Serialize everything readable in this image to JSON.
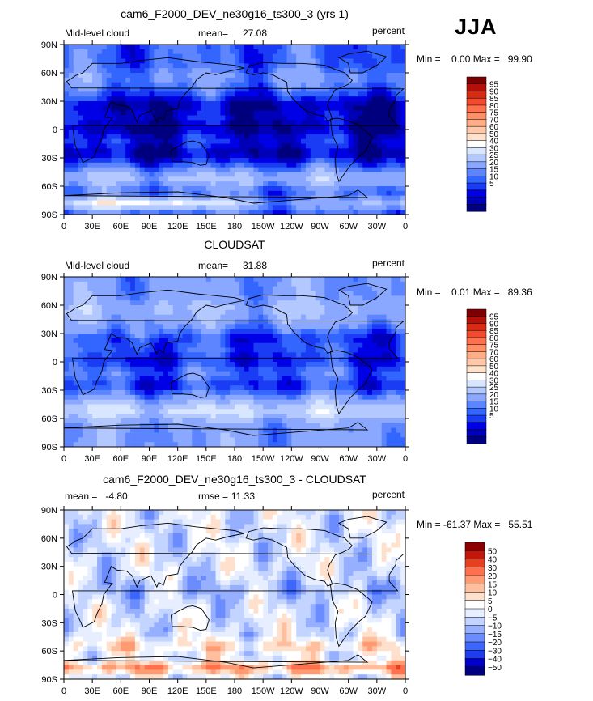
{
  "season": "JJA",
  "colors": {
    "cloud_scale": [
      "#00007f",
      "#0000b8",
      "#0000e6",
      "#1a3cf5",
      "#3366ff",
      "#5c85ff",
      "#8aa8ff",
      "#b3c8ff",
      "#d9e6ff",
      "#ffffff",
      "#ffe2cc",
      "#ffc8a8",
      "#ffad85",
      "#ff8f66",
      "#ff704d",
      "#f24a2e",
      "#d92b14",
      "#b3100a",
      "#7f0000"
    ],
    "diff_scale": [
      "#00007f",
      "#0000c8",
      "#1f3cf0",
      "#3d66ff",
      "#6b8cff",
      "#96b0ff",
      "#c2d4ff",
      "#e6eeff",
      "#ffffff",
      "#ffe0cc",
      "#ffbf9e",
      "#ff9b73",
      "#ff704d",
      "#e8401f",
      "#c4170b",
      "#8b0000"
    ],
    "land_outline": "#000000"
  },
  "chart_data": [
    {
      "type": "heatmap",
      "title": "cam6_F2000_DEV_ne30g16_ts300_3 (yrs 1)",
      "left_label": "Mid-level cloud",
      "mean_label": "mean=",
      "mean_value": "27.08",
      "units": "percent",
      "min_max": "Min =    0.00 Max =   99.90",
      "x_tick_labels": [
        "0",
        "30E",
        "60E",
        "90E",
        "120E",
        "150E",
        "180",
        "150W",
        "120W",
        "90W",
        "60W",
        "30W",
        "0"
      ],
      "y_tick_labels": [
        "90N",
        "60N",
        "30N",
        "0",
        "30S",
        "60S",
        "90S"
      ],
      "xlim": [
        0,
        360
      ],
      "ylim": [
        -90,
        90
      ],
      "legend_labels": [
        "95",
        "90",
        "85",
        "80",
        "75",
        "70",
        "60",
        "50",
        "40",
        "30",
        "25",
        "20",
        "15",
        "10",
        "5"
      ],
      "field_mean": 27.08,
      "field_min": 0.0,
      "field_max": 99.9
    },
    {
      "type": "heatmap",
      "title": "CLOUDSAT",
      "left_label": "Mid-level cloud",
      "mean_label": "mean=",
      "mean_value": "31.88",
      "units": "percent",
      "min_max": "Min =    0.01 Max =   89.36",
      "x_tick_labels": [
        "0",
        "30E",
        "60E",
        "90E",
        "120E",
        "150E",
        "180",
        "150W",
        "120W",
        "90W",
        "60W",
        "30W",
        "0"
      ],
      "y_tick_labels": [
        "90N",
        "60N",
        "30N",
        "0",
        "30S",
        "60S",
        "90S"
      ],
      "xlim": [
        0,
        360
      ],
      "ylim": [
        -90,
        90
      ],
      "legend_labels": [
        "95",
        "90",
        "85",
        "80",
        "75",
        "70",
        "60",
        "50",
        "40",
        "30",
        "25",
        "20",
        "15",
        "10",
        "5"
      ],
      "field_mean": 31.88,
      "field_min": 0.01,
      "field_max": 89.36
    },
    {
      "type": "heatmap",
      "title": "cam6_F2000_DEV_ne30g16_ts300_3 - CLOUDSAT",
      "left_label": "mean =   -4.80",
      "rmse_label": "rmse =",
      "rmse_value": "11.33",
      "units": "percent",
      "min_max": "Min = -61.37 Max =   55.51",
      "x_tick_labels": [
        "0",
        "30E",
        "60E",
        "90E",
        "120E",
        "150E",
        "180",
        "150W",
        "120W",
        "90W",
        "60W",
        "30W",
        "0"
      ],
      "y_tick_labels": [
        "90N",
        "60N",
        "30N",
        "0",
        "30S",
        "60S",
        "90S"
      ],
      "xlim": [
        0,
        360
      ],
      "ylim": [
        -90,
        90
      ],
      "legend_labels": [
        "50",
        "40",
        "30",
        "20",
        "15",
        "10",
        "5",
        "0",
        "−5",
        "−10",
        "−15",
        "−20",
        "−30",
        "−40",
        "−50"
      ],
      "field_mean": -4.8,
      "field_rmse": 11.33,
      "field_min": -61.37,
      "field_max": 55.51
    }
  ]
}
